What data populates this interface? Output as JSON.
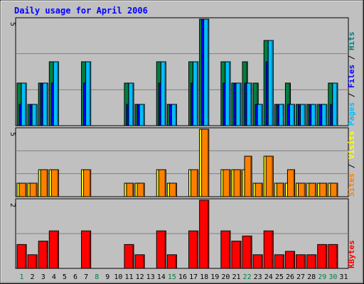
{
  "chart_data": {
    "type": "bar",
    "title": "Daily usage for April 2006",
    "days": [
      "1",
      "2",
      "3",
      "4",
      "5",
      "6",
      "7",
      "8",
      "9",
      "10",
      "11",
      "12",
      "13",
      "14",
      "15",
      "16",
      "17",
      "18",
      "19",
      "20",
      "21",
      "22",
      "23",
      "24",
      "25",
      "26",
      "27",
      "28",
      "29",
      "30",
      "31"
    ],
    "weekend_days": [
      1,
      8,
      15,
      22,
      29,
      30
    ],
    "panels": [
      {
        "id": "hits",
        "ymax": 5,
        "ymax_label": "5",
        "series_labels": [
          "Pages",
          "Files",
          "Hits"
        ],
        "series": [
          {
            "name": "Hits",
            "color": "#008040",
            "values": [
              2,
              1,
              2,
              3,
              0,
              0,
              3,
              0,
              0,
              0,
              2,
              1,
              0,
              3,
              1,
              0,
              3,
              5,
              0,
              3,
              2,
              3,
              2,
              4,
              1,
              2,
              1,
              1,
              1,
              2,
              0
            ]
          },
          {
            "name": "Files",
            "color": "#0000ff",
            "values": [
              1,
              1,
              2,
              2,
              0,
              0,
              2,
              0,
              0,
              0,
              1,
              1,
              0,
              2,
              1,
              0,
              2,
              5,
              0,
              2,
              2,
              2,
              1,
              3,
              1,
              1,
              1,
              1,
              1,
              1,
              0
            ]
          },
          {
            "name": "Pages",
            "color": "#00c0ff",
            "values": [
              2,
              1,
              2,
              3,
              0,
              0,
              3,
              0,
              0,
              0,
              2,
              1,
              0,
              3,
              1,
              0,
              3,
              5,
              0,
              3,
              2,
              2,
              1,
              4,
              1,
              1,
              1,
              1,
              1,
              2,
              0
            ]
          }
        ]
      },
      {
        "id": "visits",
        "ymax": 5,
        "ymax_label": "5",
        "series_labels": [
          "Sites",
          "Visits"
        ],
        "series": [
          {
            "name": "Visits",
            "color": "#ffff00",
            "values": [
              1,
              1,
              2,
              2,
              0,
              0,
              2,
              0,
              0,
              0,
              1,
              1,
              0,
              2,
              1,
              0,
              2,
              5,
              0,
              2,
              2,
              2,
              1,
              3,
              1,
              1,
              1,
              1,
              1,
              1,
              0
            ]
          },
          {
            "name": "Sites",
            "color": "#ff8000",
            "values": [
              1,
              1,
              2,
              2,
              0,
              0,
              2,
              0,
              0,
              0,
              1,
              1,
              0,
              2,
              1,
              0,
              2,
              5,
              0,
              2,
              2,
              3,
              1,
              3,
              1,
              2,
              1,
              1,
              1,
              1,
              0
            ]
          }
        ]
      },
      {
        "id": "kbytes",
        "ymax": 2,
        "ymax_label": "2",
        "series_labels": [
          "KBytes"
        ],
        "series": [
          {
            "name": "KBytes",
            "color": "#ff0000",
            "values": [
              0.7,
              0.4,
              0.8,
              1.1,
              0,
              0,
              1.1,
              0,
              0,
              0,
              0.7,
              0.4,
              0,
              1.1,
              0.4,
              0,
              1.1,
              2.0,
              0,
              1.1,
              0.8,
              0.95,
              0.4,
              1.1,
              0.4,
              0.5,
              0.4,
              0.4,
              0.7,
              0.7,
              0
            ]
          }
        ]
      }
    ]
  }
}
